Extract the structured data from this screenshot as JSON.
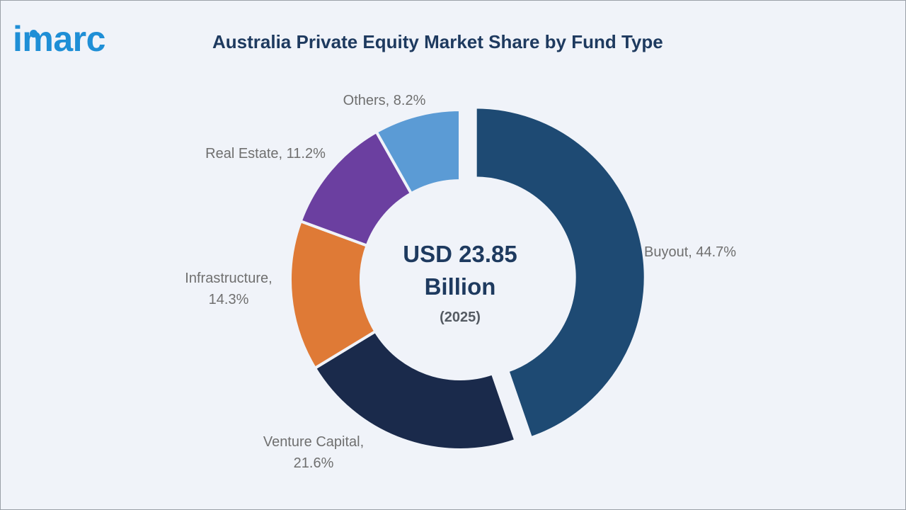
{
  "logo": {
    "text": "imarc"
  },
  "chart_data": {
    "type": "pie",
    "title": "Australia Private Equity Market Share by Fund Type",
    "center_text": [
      "USD 23.85",
      "Billion"
    ],
    "center_subtext": "(2025)",
    "slices": [
      {
        "label": "Buyout",
        "value": 44.7,
        "label_lines": [
          "Buyout, 44.7%"
        ],
        "color": "#1e4a73",
        "exploded": true
      },
      {
        "label": "Venture Capital",
        "value": 21.6,
        "label_lines": [
          "Venture Capital,",
          "21.6%"
        ],
        "color": "#1a2a4b"
      },
      {
        "label": "Infrastructure",
        "value": 14.3,
        "label_lines": [
          "Infrastructure,",
          "14.3%"
        ],
        "color": "#df7a36"
      },
      {
        "label": "Real Estate",
        "value": 11.2,
        "label_lines": [
          "Real Estate, 11.2%"
        ],
        "color": "#6b3fa0"
      },
      {
        "label": "Others",
        "value": 8.2,
        "label_lines": [
          "Others, 8.2%"
        ],
        "color": "#5b9bd5"
      }
    ]
  }
}
